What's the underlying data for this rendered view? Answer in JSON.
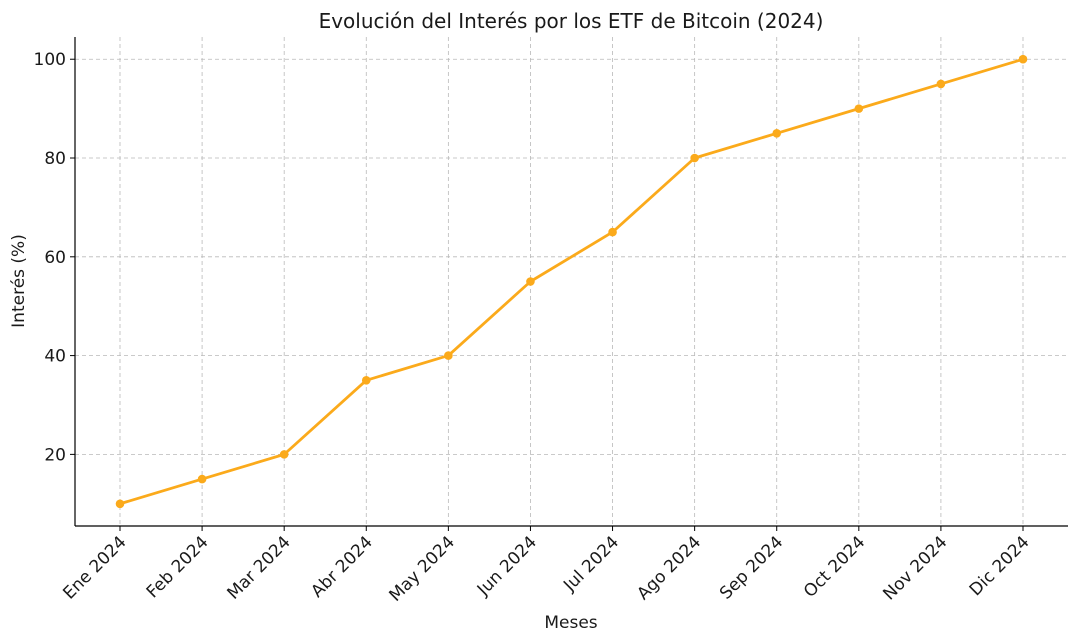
{
  "chart_data": {
    "type": "line",
    "title": "Evolución del Interés por los ETF de Bitcoin (2024)",
    "xlabel": "Meses",
    "ylabel": "Interés (%)",
    "categories": [
      "Ene 2024",
      "Feb 2024",
      "Mar 2024",
      "Abr 2024",
      "May 2024",
      "Jun 2024",
      "Jul 2024",
      "Ago 2024",
      "Sep 2024",
      "Oct 2024",
      "Nov 2024",
      "Dic 2024"
    ],
    "series": [
      {
        "values": [
          10,
          15,
          20,
          35,
          40,
          55,
          65,
          80,
          85,
          90,
          95,
          100
        ],
        "color": "#FBAA1B",
        "marker": "circle"
      }
    ],
    "ylim": [
      5.5,
      104.5
    ],
    "yticks": [
      20,
      40,
      60,
      80,
      100
    ],
    "grid": true
  }
}
